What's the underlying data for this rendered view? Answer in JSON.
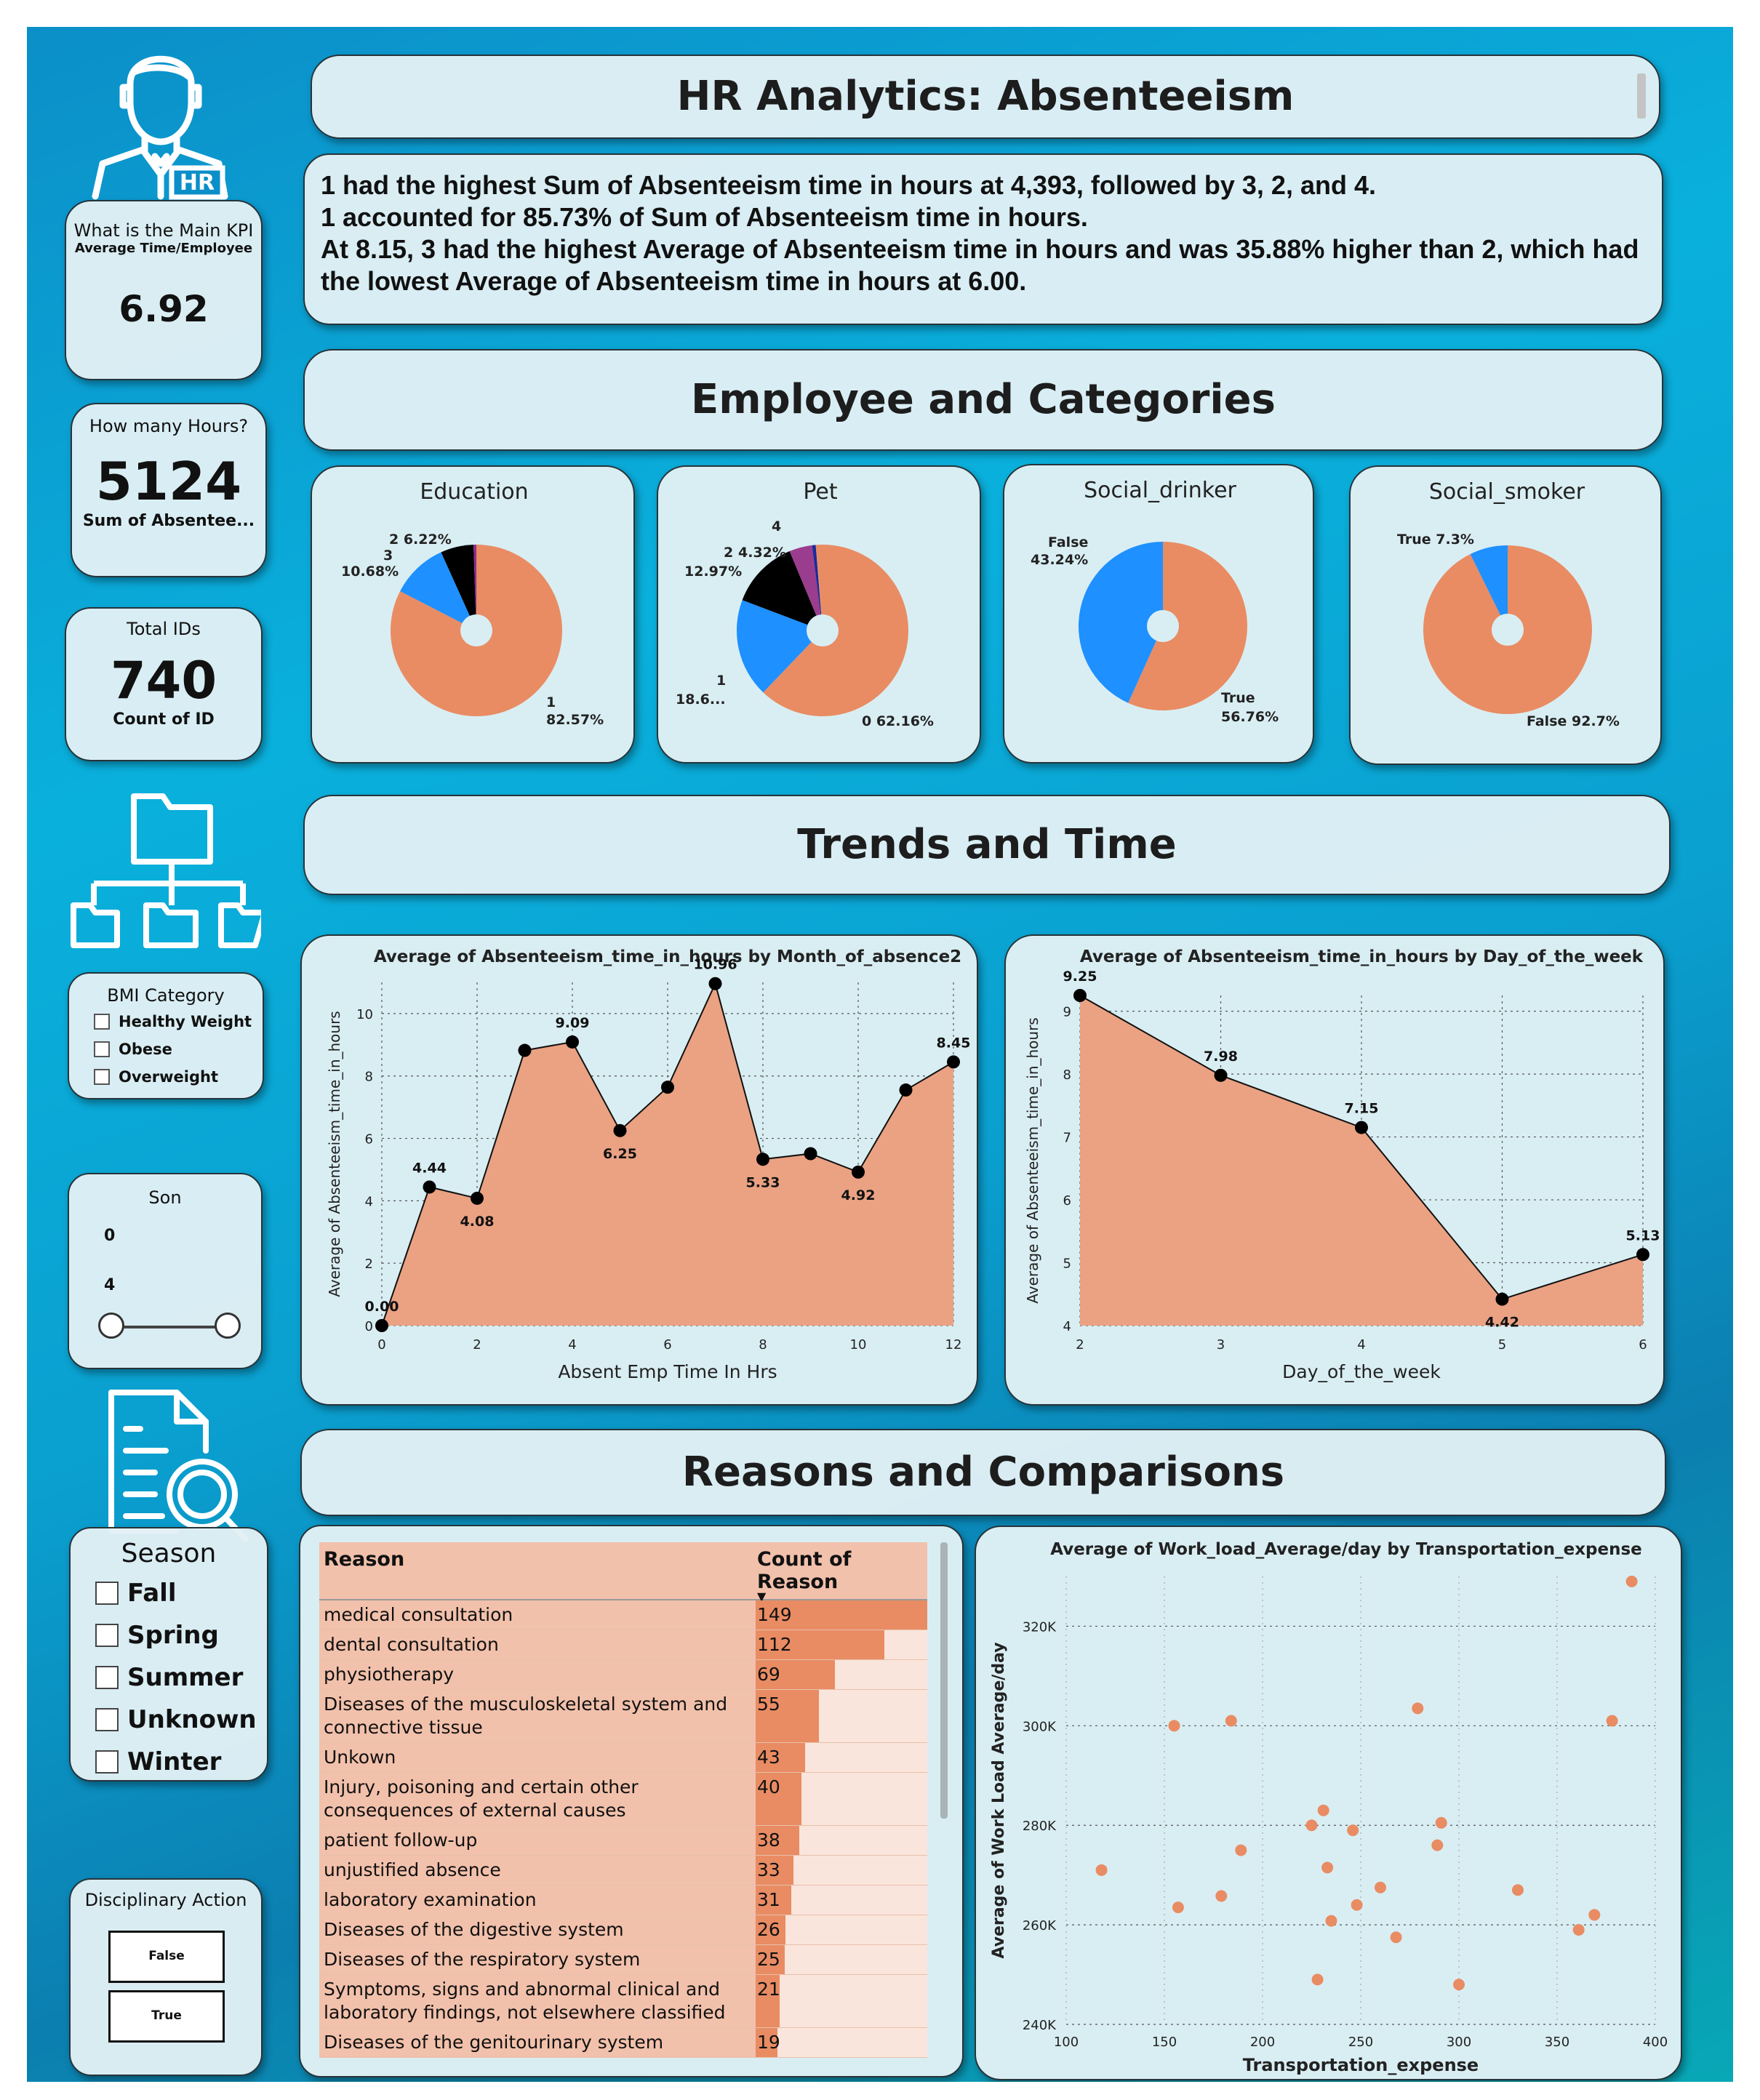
{
  "header": {
    "title": "HR Analytics: Absenteeism"
  },
  "insights": [
    "1 had the highest Sum of Absenteeism time in hours at 4,393, followed by 3, 2, and 4.",
    "1 accounted for 85.73% of Sum of Absenteeism time in hours.",
    "At 8.15, 3 had the highest Average of Absenteeism time in hours and was 35.88% higher than 2, which had the lowest Average of Absenteeism time in hours at 6.00."
  ],
  "sections": {
    "employee": "Employee and Categories",
    "trends": "Trends and Time",
    "reasons": "Reasons and Comparisons"
  },
  "kpi_main": {
    "title": "What is the Main KPI",
    "subtitle": "Average Time/Employee",
    "value": "6.92"
  },
  "kpi_hours": {
    "title": "How many Hours?",
    "value": "5124",
    "caption": "Sum of Absentee..."
  },
  "kpi_ids": {
    "title": "Total IDs",
    "value": "740",
    "caption": "Count of ID"
  },
  "icons": {
    "user": "user-icon",
    "hr_badge": "HR",
    "folder": "folder-tree-icon",
    "report": "report-search-icon"
  },
  "bmi": {
    "title": "BMI Category",
    "options": [
      "Healthy Weight",
      "Obese",
      "Overweight"
    ]
  },
  "son": {
    "title": "Son",
    "min": "0",
    "max": "4",
    "range": [
      0,
      4
    ]
  },
  "season": {
    "title": "Season",
    "options": [
      "Fall",
      "Spring",
      "Summer",
      "Unknown",
      "Winter"
    ]
  },
  "disciplinary": {
    "title": "Disciplinary Action",
    "options": [
      "False",
      "True"
    ]
  },
  "pies": [
    {
      "title": "Education",
      "slices": [
        {
          "label": "1",
          "value": 82.57,
          "pct": "82.57%",
          "color": "#e98c63"
        },
        {
          "label": "3",
          "value": 10.68,
          "pct": "10.68%",
          "color": "#1e90ff"
        },
        {
          "label": "2",
          "value": 6.22,
          "pct": "6.22%",
          "color": "#000000"
        },
        {
          "label": "4",
          "value": 0.53,
          "pct": "",
          "color": "#8e2a8e"
        }
      ],
      "labels": [
        "2 6.22%",
        "3",
        "10.68%",
        "1",
        "82.57%"
      ]
    },
    {
      "title": "Pet",
      "slices": [
        {
          "label": "0",
          "value": 62.16,
          "pct": "62.16%",
          "color": "#e98c63"
        },
        {
          "label": "1",
          "value": 18.6,
          "pct": "18.6...",
          "color": "#1e90ff"
        },
        {
          "label": "2",
          "value": 12.97,
          "pct": "12.97%",
          "color": "#000000"
        },
        {
          "label": "4",
          "value": 4.32,
          "pct": "4.32%",
          "color": "#9b3d8e"
        },
        {
          "label": "5",
          "value": 0.68,
          "pct": "",
          "color": "#1a2a9a"
        },
        {
          "label": "8",
          "value": 1.27,
          "pct": "",
          "color": "#e98c63"
        }
      ],
      "labels": [
        "4",
        "2",
        "4.32%",
        "12.97%",
        "1",
        "18.6...",
        "0 62.16%"
      ]
    },
    {
      "title": "Social_drinker",
      "slices": [
        {
          "label": "True",
          "value": 56.76,
          "pct": "56.76%",
          "color": "#e98c63"
        },
        {
          "label": "False",
          "value": 43.24,
          "pct": "43.24%",
          "color": "#1e90ff"
        }
      ],
      "labels": [
        "False",
        "43.24%",
        "True",
        "56.76%"
      ]
    },
    {
      "title": "Social_smoker",
      "slices": [
        {
          "label": "False",
          "value": 92.7,
          "pct": "92.7%",
          "color": "#e98c63"
        },
        {
          "label": "True",
          "value": 7.3,
          "pct": "7.3%",
          "color": "#1e90ff"
        }
      ],
      "labels": [
        "True 7.3%",
        "False 92.7%"
      ]
    }
  ],
  "chart_data": [
    {
      "type": "area",
      "title": "Average of Absenteeism_time_in_hours by Month_of_absence2",
      "xlabel": "Absent Emp Time In Hrs",
      "ylabel": "Average of Absenteeism_time_in_hours",
      "x": [
        0,
        1,
        2,
        3,
        4,
        5,
        6,
        7,
        8,
        9,
        10,
        11,
        12
      ],
      "y": [
        0,
        4.44,
        4.08,
        8.82,
        9.09,
        6.25,
        7.64,
        10.96,
        5.33,
        5.51,
        4.92,
        7.55,
        8.45
      ],
      "data_labels": {
        "0": "0.00",
        "1": "4.44",
        "2": "4.08",
        "4": "9.09",
        "5": "6.25",
        "7": "10.96",
        "8": "5.33",
        "10": "4.92",
        "12": "8.45"
      },
      "xlim": [
        0,
        12
      ],
      "ylim": [
        0,
        11
      ],
      "xticks": [
        0,
        2,
        4,
        6,
        8,
        10,
        12
      ],
      "yticks": [
        0,
        2,
        4,
        6,
        8,
        10
      ],
      "color": "#eaa283",
      "grid": true
    },
    {
      "type": "area",
      "title": "Average of Absenteeism_time_in_hours by Day_of_the_week",
      "xlabel": "Day_of_the_week",
      "ylabel": "Average of Absenteeism_time_in_hours",
      "x": [
        2,
        3,
        4,
        5,
        6
      ],
      "y": [
        9.25,
        7.98,
        7.15,
        4.42,
        5.13
      ],
      "data_labels": {
        "2": "9.25",
        "3": "7.98",
        "4": "7.15",
        "5": "4.42",
        "6": "5.13"
      },
      "xlim": [
        2,
        6
      ],
      "ylim": [
        4,
        9.25
      ],
      "xticks": [
        2,
        3,
        4,
        5,
        6
      ],
      "yticks": [
        4,
        5,
        6,
        7,
        8,
        9
      ],
      "color": "#eaa283",
      "grid": true
    },
    {
      "type": "table",
      "title": "",
      "columns": [
        "Reason",
        "Count of Reason"
      ],
      "rows": [
        {
          "reason": "medical consultation",
          "count": 149
        },
        {
          "reason": "dental consultation",
          "count": 112
        },
        {
          "reason": "physiotherapy",
          "count": 69
        },
        {
          "reason": "Diseases of the musculoskeletal system and connective tissue",
          "count": 55
        },
        {
          "reason": "Unkown",
          "count": 43
        },
        {
          "reason": "Injury, poisoning and certain other consequences of external causes",
          "count": 40
        },
        {
          "reason": "patient follow-up",
          "count": 38
        },
        {
          "reason": "unjustified absence",
          "count": 33
        },
        {
          "reason": "laboratory examination",
          "count": 31
        },
        {
          "reason": "Diseases of the digestive system",
          "count": 26
        },
        {
          "reason": "Diseases of the respiratory system",
          "count": 25
        },
        {
          "reason": "Symptoms, signs and abnormal clinical and laboratory findings, not elsewhere classified",
          "count": 21
        },
        {
          "reason": "Diseases of the genitourinary system",
          "count": 19
        }
      ],
      "max": 149,
      "bar_color": "#e98c63"
    },
    {
      "type": "scatter",
      "title": "Average of Work_load_Average/day by Transportation_expense",
      "xlabel": "Transportation_expense",
      "ylabel": "Average of Work Load Average/day",
      "xlim": [
        100,
        400
      ],
      "ylim": [
        240000,
        330000
      ],
      "xticks": [
        100,
        150,
        200,
        250,
        300,
        350,
        400
      ],
      "yticks": [
        240000,
        260000,
        280000,
        300000,
        320000
      ],
      "ytick_labels": [
        "240K",
        "260K",
        "280K",
        "300K",
        "320K"
      ],
      "points": [
        [
          118,
          271000
        ],
        [
          155,
          300000
        ],
        [
          157,
          263500
        ],
        [
          179,
          265800
        ],
        [
          184,
          301000
        ],
        [
          189,
          275000
        ],
        [
          225,
          280000
        ],
        [
          228,
          249000
        ],
        [
          231,
          283000
        ],
        [
          233,
          271500
        ],
        [
          235,
          260800
        ],
        [
          246,
          279000
        ],
        [
          248,
          264000
        ],
        [
          260,
          267500
        ],
        [
          268,
          257500
        ],
        [
          279,
          303500
        ],
        [
          289,
          276000
        ],
        [
          291,
          280500
        ],
        [
          300,
          248000
        ],
        [
          330,
          267000
        ],
        [
          361,
          259000
        ],
        [
          369,
          262000
        ],
        [
          378,
          301000
        ],
        [
          388,
          329000
        ]
      ],
      "color": "#e98c63",
      "grid": true
    }
  ]
}
